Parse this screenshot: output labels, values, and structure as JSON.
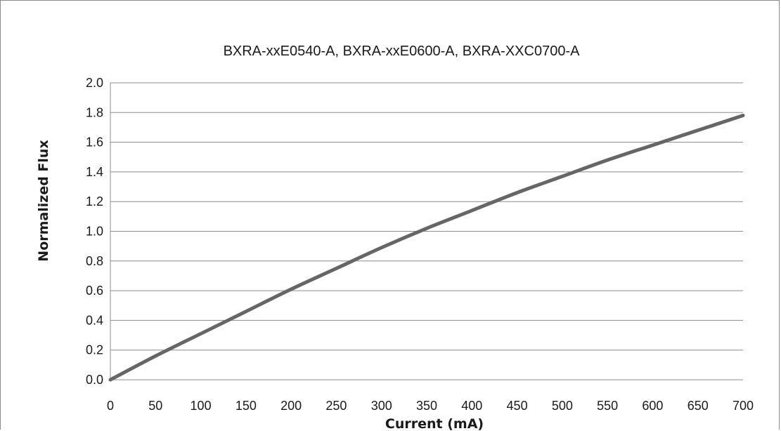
{
  "chart_data": {
    "type": "line",
    "title": "BXRA-xxE0540-A, BXRA-xxE0600-A, BXRA-XXC0700-A",
    "xlabel": "Current (mA)",
    "ylabel": "Normalized Flux",
    "xlim": [
      0,
      700
    ],
    "ylim": [
      0,
      2.0
    ],
    "x_ticks": [
      "0",
      "50",
      "100",
      "150",
      "200",
      "250",
      "300",
      "350",
      "400",
      "450",
      "500",
      "550",
      "600",
      "650",
      "700"
    ],
    "y_ticks": [
      "0.0",
      "0.2",
      "0.4",
      "0.6",
      "0.8",
      "1.0",
      "1.2",
      "1.4",
      "1.6",
      "1.8",
      "2.0"
    ],
    "grid": "horizontal",
    "legend": "none",
    "series": [
      {
        "color": "#666666",
        "x": [
          0,
          50,
          100,
          150,
          200,
          250,
          300,
          350,
          400,
          450,
          500,
          550,
          600,
          650,
          700
        ],
        "y": [
          0.0,
          0.16,
          0.31,
          0.46,
          0.61,
          0.75,
          0.89,
          1.02,
          1.14,
          1.26,
          1.37,
          1.48,
          1.58,
          1.68,
          1.78
        ]
      }
    ]
  }
}
